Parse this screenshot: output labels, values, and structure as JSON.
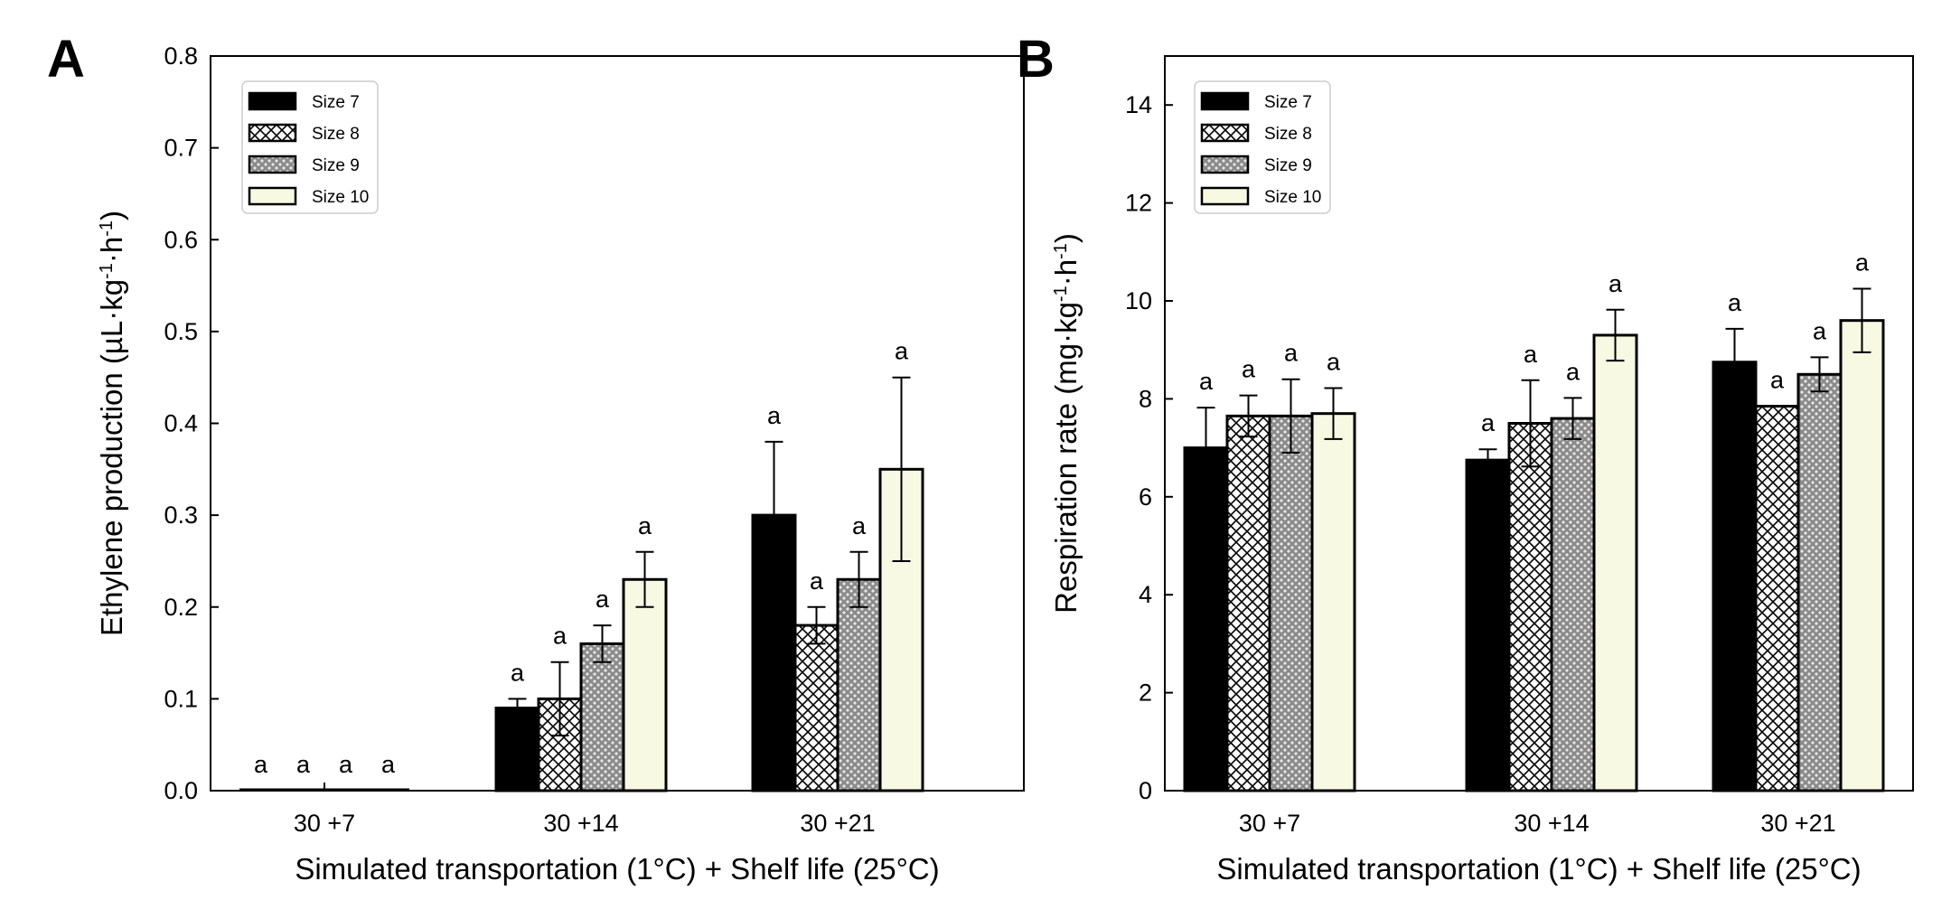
{
  "colors": {
    "size7": "#000000",
    "size10": "#f7f9e3",
    "stroke": "#000000"
  },
  "chart_data": [
    {
      "panel": "A",
      "type": "bar",
      "categories": [
        "30 +7",
        "30 +14",
        "30 +21"
      ],
      "xlabel": "Simulated transportation (1°C) + Shelf life (25°C)",
      "ylabel_parts": [
        "Ethylene production (µL·kg",
        "-1",
        "·h",
        "-1",
        ")"
      ],
      "ylim": [
        0,
        0.8
      ],
      "yticks": [
        0.0,
        0.1,
        0.2,
        0.3,
        0.4,
        0.5,
        0.6,
        0.7,
        0.8
      ],
      "ytick_labels": [
        "0.0",
        "0.1",
        "0.2",
        "0.3",
        "0.4",
        "0.5",
        "0.6",
        "0.7",
        "0.8"
      ],
      "legend_position": "top-left",
      "series": [
        {
          "name": "Size 7",
          "pattern": "solid-black",
          "values": [
            0.0,
            0.09,
            0.3
          ],
          "errors": [
            0.0,
            0.01,
            0.08
          ],
          "labels": [
            "a",
            "a",
            "a"
          ]
        },
        {
          "name": "Size 8",
          "pattern": "crosshatch",
          "values": [
            0.0,
            0.1,
            0.18
          ],
          "errors": [
            0.0,
            0.04,
            0.02
          ],
          "labels": [
            "a",
            "a",
            "a"
          ]
        },
        {
          "name": "Size 9",
          "pattern": "dotted",
          "values": [
            0.0,
            0.16,
            0.23
          ],
          "errors": [
            0.0,
            0.02,
            0.03
          ],
          "labels": [
            "a",
            "a",
            "a"
          ]
        },
        {
          "name": "Size 10",
          "pattern": "light-solid",
          "values": [
            0.0,
            0.23,
            0.35
          ],
          "errors": [
            0.0,
            0.03,
            0.1
          ],
          "labels": [
            "a",
            "a",
            "a"
          ]
        }
      ]
    },
    {
      "panel": "B",
      "type": "bar",
      "categories": [
        "30 +7",
        "30 +14",
        "30 +21"
      ],
      "xlabel": "Simulated transportation (1°C) + Shelf life (25°C)",
      "ylabel_parts": [
        "Respiration rate (mg·kg",
        "-1",
        "·h",
        "-1",
        ")"
      ],
      "ylim": [
        0,
        15
      ],
      "yticks": [
        0,
        2,
        4,
        6,
        8,
        10,
        12,
        14
      ],
      "ytick_labels": [
        "0",
        "2",
        "4",
        "6",
        "8",
        "10",
        "12",
        "14"
      ],
      "legend_position": "top-left",
      "series": [
        {
          "name": "Size 7",
          "pattern": "solid-black",
          "values": [
            7.0,
            6.75,
            8.75
          ],
          "errors": [
            0.82,
            0.22,
            0.68
          ],
          "labels": [
            "a",
            "a",
            "a"
          ]
        },
        {
          "name": "Size 8",
          "pattern": "crosshatch",
          "values": [
            7.65,
            7.5,
            7.85
          ],
          "errors": [
            0.42,
            0.88,
            0.0
          ],
          "labels": [
            "a",
            "a",
            "a"
          ]
        },
        {
          "name": "Size 9",
          "pattern": "dotted",
          "values": [
            7.65,
            7.6,
            8.5
          ],
          "errors": [
            0.75,
            0.42,
            0.35
          ],
          "labels": [
            "a",
            "a",
            "a"
          ]
        },
        {
          "name": "Size 10",
          "pattern": "light-solid",
          "values": [
            7.7,
            9.3,
            9.6
          ],
          "errors": [
            0.52,
            0.52,
            0.65
          ],
          "labels": [
            "a",
            "a",
            "a"
          ]
        }
      ]
    }
  ]
}
